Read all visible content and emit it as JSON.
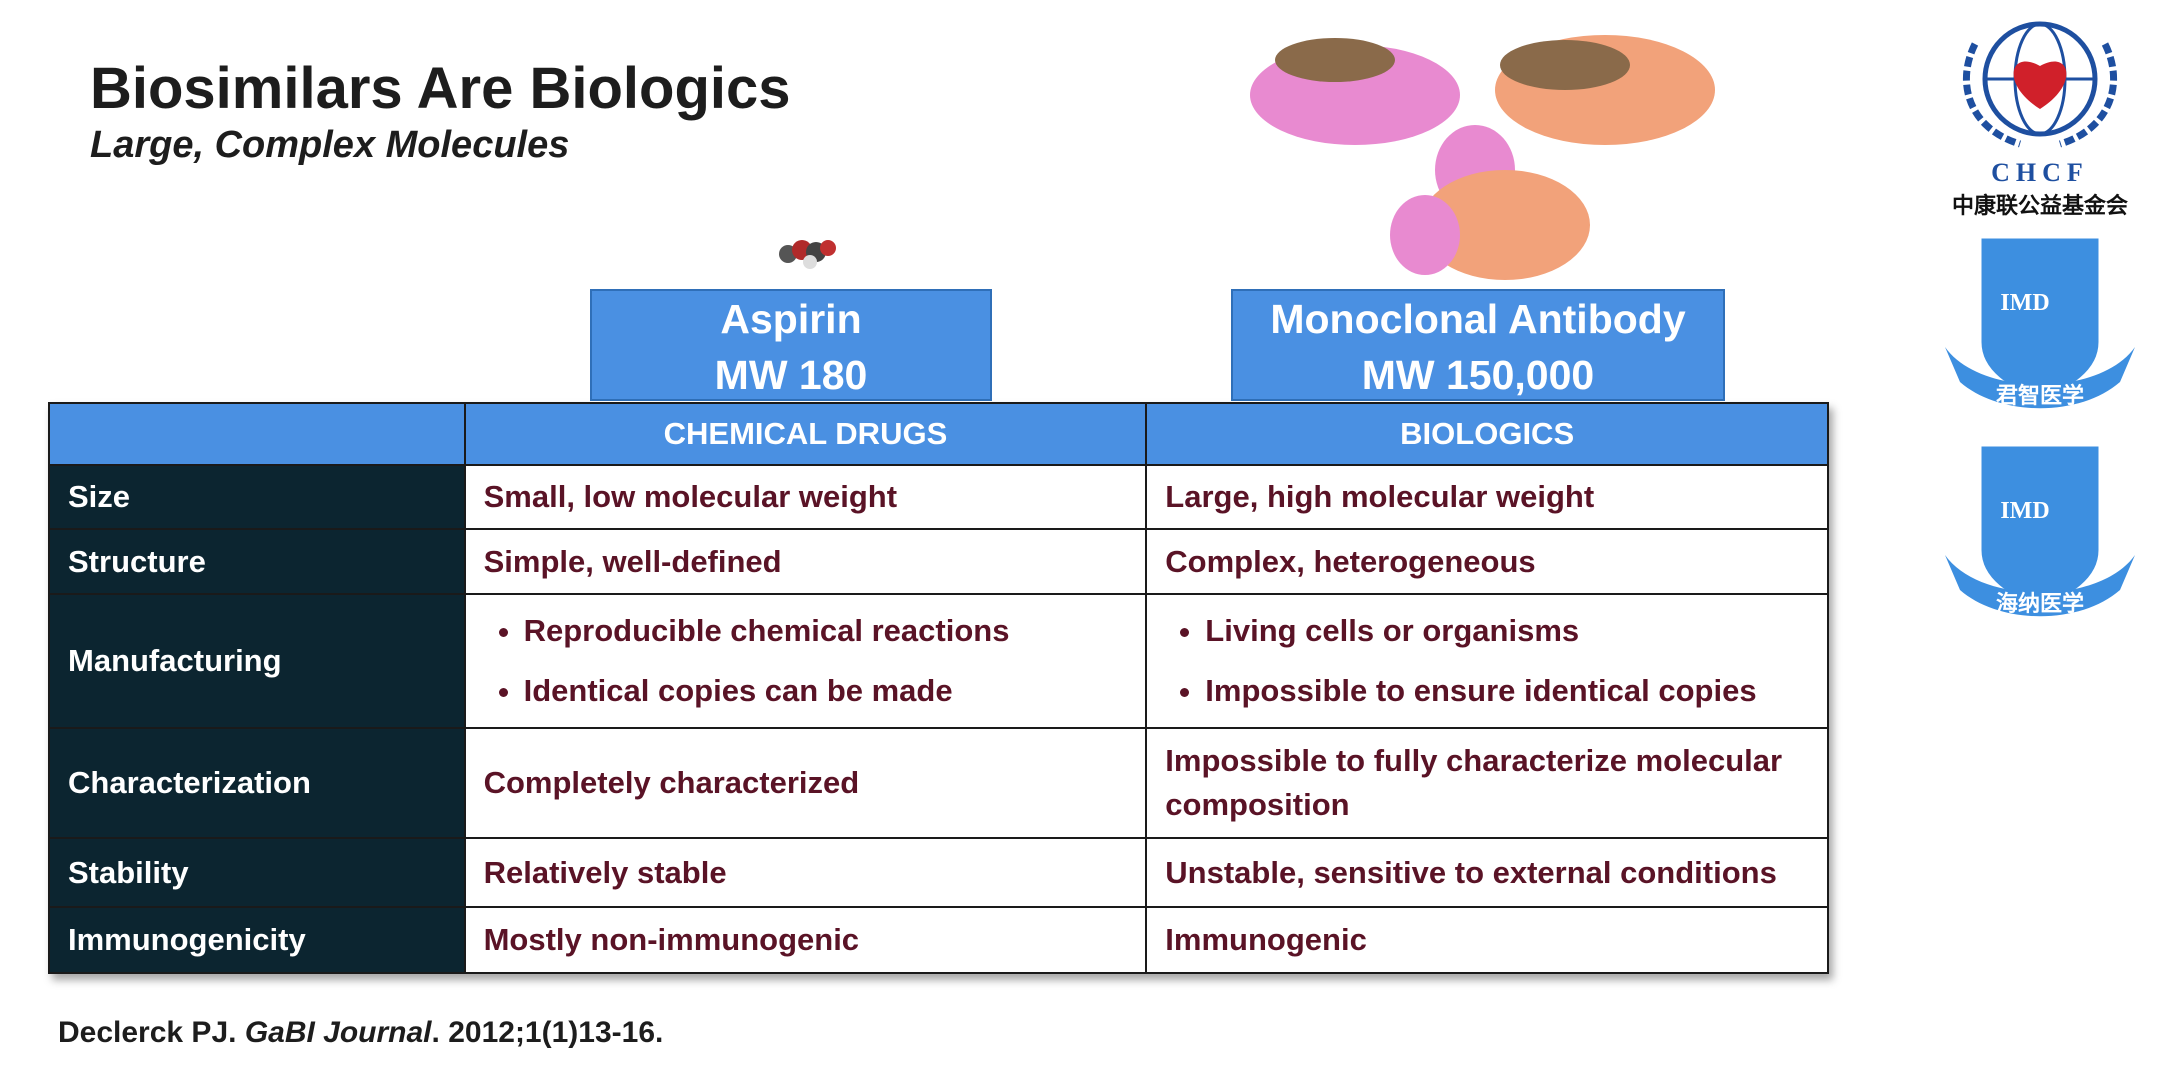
{
  "header": {
    "title": "Biosimilars Are Biologics",
    "subtitle": "Large, Complex Molecules"
  },
  "molecules": [
    {
      "name": "Aspirin",
      "mw": "MW 180"
    },
    {
      "name": "Monoclonal Antibody",
      "mw": "MW 150,000"
    }
  ],
  "table": {
    "columns": [
      "CHEMICAL DRUGS",
      "BIOLOGICS"
    ],
    "rows": [
      {
        "label": "Size",
        "cells": [
          [
            "Small, low molecular weight"
          ],
          [
            "Large, high molecular weight"
          ]
        ]
      },
      {
        "label": "Structure",
        "cells": [
          [
            "Simple, well-defined"
          ],
          [
            "Complex, heterogeneous"
          ]
        ]
      },
      {
        "label": "Manufacturing",
        "cells": [
          [
            "Reproducible chemical reactions",
            "Identical copies can be made"
          ],
          [
            "Living cells or organisms",
            "Impossible to ensure identical copies"
          ]
        ]
      },
      {
        "label": "Characterization",
        "cells": [
          [
            "Completely characterized"
          ],
          [
            "Impossible to fully characterize molecular composition"
          ]
        ]
      },
      {
        "label": "Stability",
        "cells": [
          [
            "Relatively stable"
          ],
          [
            "Unstable, sensitive to external conditions"
          ]
        ]
      },
      {
        "label": "Immunogenicity",
        "cells": [
          [
            "Mostly non-immunogenic"
          ],
          [
            "Immunogenic"
          ]
        ]
      }
    ]
  },
  "citation": {
    "author": "Declerck PJ.",
    "journal": "GaBI Journal",
    "details": ". 2012;1(1)13-16."
  },
  "logos": {
    "chcf": "CHCF",
    "chcf_name": "中康联公益基金会",
    "imd1": "IMD",
    "imd1_name": "君智医学",
    "imd2": "IMD",
    "imd2_name": "海纳医学"
  }
}
